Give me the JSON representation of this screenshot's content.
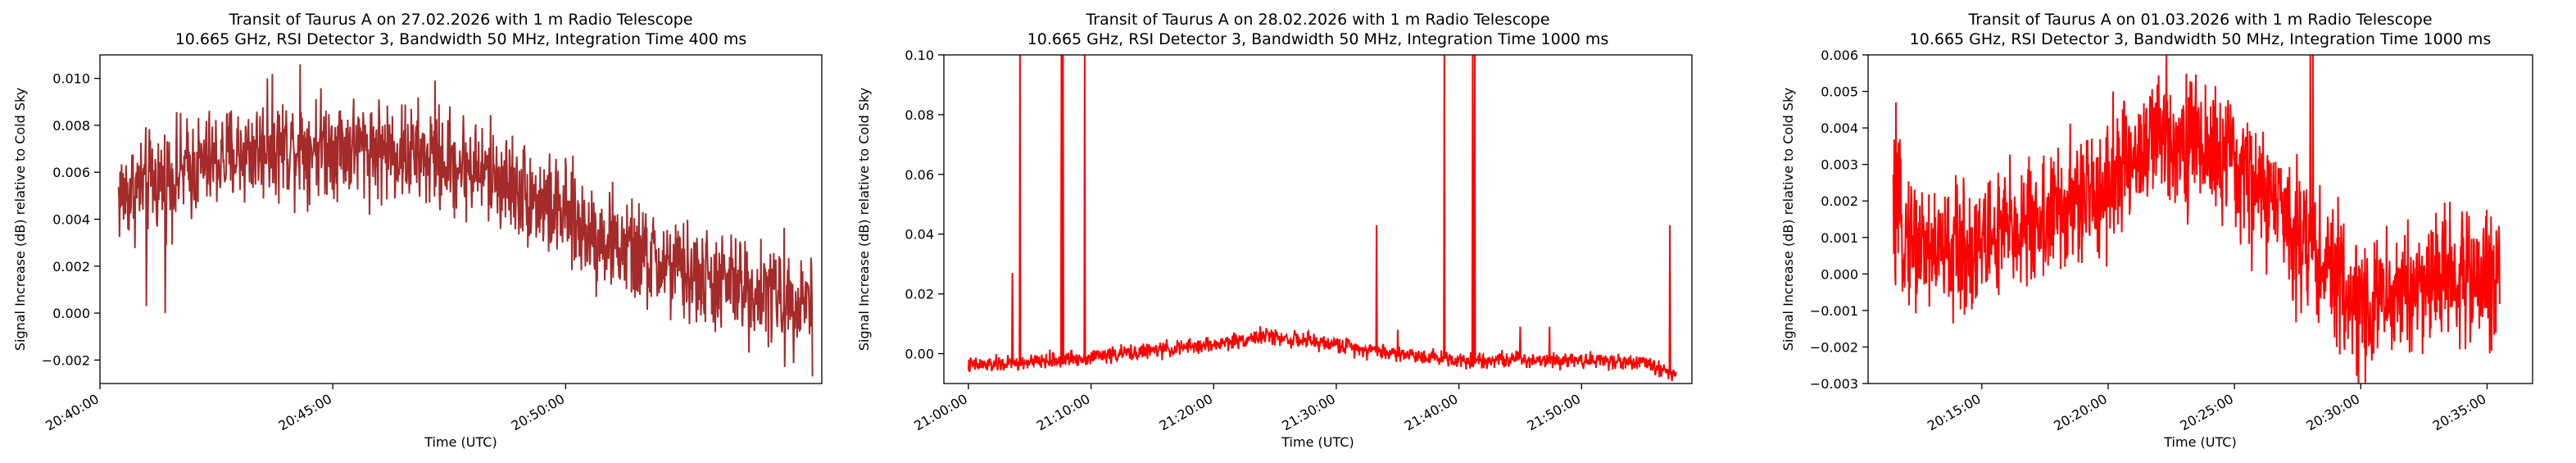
{
  "chart_data": [
    {
      "type": "line",
      "title": [
        "Transit of Taurus A on 27.02.2026 with 1 m Radio Telescope",
        "10.665 GHz, RSI Detector 3, Bandwidth 50 MHz, Integration Time 400 ms"
      ],
      "xlabel": "Time (UTC)",
      "ylabel": "Signal Increase (dB) relative to Cold Sky",
      "color": "#a52a2a",
      "grid": false,
      "x_range_min": [
        40.0,
        55.5
      ],
      "x_ticks_min": [
        40,
        45,
        50
      ],
      "x_tick_labels": [
        "20:40:00",
        "20:45:00",
        "20:50:00"
      ],
      "ylim": [
        -0.003,
        0.011
      ],
      "y_ticks": [
        -0.002,
        0.0,
        0.002,
        0.004,
        0.006,
        0.008,
        0.01
      ],
      "y_tick_labels": [
        "−0.002",
        "0.000",
        "0.002",
        "0.004",
        "0.006",
        "0.008",
        "0.010"
      ],
      "series": [
        {
          "x_min": [
            40.4,
            41.0,
            41.5,
            42.0,
            42.5,
            43.0,
            43.5,
            44.0,
            44.5,
            45.0,
            45.5,
            46.0,
            46.5,
            47.0,
            47.5,
            48.0,
            48.5,
            49.0,
            49.5,
            50.0,
            50.5,
            51.0,
            51.5,
            52.0,
            52.5,
            53.0,
            53.5,
            54.0,
            54.5,
            55.0,
            55.3
          ],
          "y": [
            0.005,
            0.0055,
            0.0058,
            0.0062,
            0.0065,
            0.0068,
            0.007,
            0.0071,
            0.0072,
            0.0072,
            0.0071,
            0.007,
            0.0068,
            0.0066,
            0.0064,
            0.0062,
            0.0058,
            0.0053,
            0.0047,
            0.0041,
            0.0035,
            0.003,
            0.0025,
            0.0021,
            0.0017,
            0.0014,
            0.0012,
            0.001,
            0.0008,
            0.0007,
            0.0006
          ],
          "noise": 0.0012,
          "spikes": [
            [
              44.3,
              0.0106
            ],
            [
              43.6,
              0.01
            ],
            [
              41.0,
              0.0003
            ],
            [
              41.4,
              0.0
            ],
            [
              55.4,
              -0.0027
            ],
            [
              54.7,
              -0.0023
            ],
            [
              47.2,
              0.0099
            ]
          ]
        }
      ]
    },
    {
      "type": "line",
      "title": [
        "Transit of Taurus A on 28.02.2026 with 1 m Radio Telescope",
        "10.665 GHz, RSI Detector 3, Bandwidth 50 MHz, Integration Time 1000 ms"
      ],
      "xlabel": "Time (UTC)",
      "ylabel": "Signal Increase (dB) relative to Cold Sky",
      "color": "#ff0000",
      "grid": false,
      "x_range_min": [
        58.0,
        119.0
      ],
      "x_ticks_min": [
        60,
        70,
        80,
        90,
        100,
        110
      ],
      "x_tick_labels": [
        "21:00:00",
        "21:10:00",
        "21:20:00",
        "21:30:00",
        "21:40:00",
        "21:50:00"
      ],
      "ylim": [
        -0.01,
        0.1
      ],
      "y_ticks": [
        0.0,
        0.02,
        0.04,
        0.06,
        0.08,
        0.1
      ],
      "y_tick_labels": [
        "0.00",
        "0.02",
        "0.04",
        "0.06",
        "0.08",
        "0.10"
      ],
      "series": [
        {
          "x_min": [
            60,
            65,
            70,
            75,
            80,
            84,
            86,
            90,
            95,
            100,
            105,
            110,
            115,
            117.7
          ],
          "y": [
            -0.004,
            -0.003,
            -0.001,
            0.001,
            0.003,
            0.006,
            0.005,
            0.003,
            0.0,
            -0.002,
            -0.002,
            -0.002,
            -0.003,
            -0.007
          ],
          "noise": 0.0015,
          "spikes": [
            [
              63.6,
              0.027
            ],
            [
              64.2,
              0.1
            ],
            [
              67.6,
              0.1
            ],
            [
              67.7,
              0.1
            ],
            [
              69.5,
              0.1
            ],
            [
              93.3,
              0.043
            ],
            [
              95.0,
              0.008
            ],
            [
              98.8,
              0.1
            ],
            [
              101.1,
              0.1
            ],
            [
              101.3,
              0.1
            ],
            [
              105.0,
              0.009
            ],
            [
              107.4,
              0.009
            ],
            [
              117.2,
              0.043
            ]
          ]
        }
      ]
    },
    {
      "type": "line",
      "title": [
        "Transit of Taurus A on 01.03.2026 with 1 m Radio Telescope",
        "10.665 GHz, RSI Detector 3, Bandwidth 50 MHz, Integration Time 1000 ms"
      ],
      "xlabel": "Time (UTC)",
      "ylabel": "Signal Increase (dB) relative to Cold Sky",
      "color": "#ff0000",
      "grid": false,
      "x_range_min": [
        10.5,
        36.8
      ],
      "x_ticks_min": [
        15,
        20,
        25,
        30,
        35
      ],
      "x_tick_labels": [
        "20:15:00",
        "20:20:00",
        "20:25:00",
        "20:30:00",
        "20:35:00"
      ],
      "ylim": [
        -0.003,
        0.006
      ],
      "y_ticks": [
        -0.003,
        -0.002,
        -0.001,
        0.0,
        0.001,
        0.002,
        0.003,
        0.004,
        0.005,
        0.006
      ],
      "y_tick_labels": [
        "−0.003",
        "−0.002",
        "−0.001",
        "0.000",
        "0.001",
        "0.002",
        "0.003",
        "0.004",
        "0.005",
        "0.006"
      ],
      "series": [
        {
          "x_min": [
            11.5,
            12.5,
            13.5,
            14.5,
            15.5,
            16.5,
            17.5,
            18.5,
            19.5,
            20.5,
            21.5,
            22.5,
            23.5,
            24.5,
            25.5,
            26.5,
            27.5,
            28.5,
            29.5,
            30.5,
            31.5,
            32.5,
            33.5,
            34.5,
            35.5
          ],
          "y": [
            0.0015,
            0.0008,
            0.0006,
            0.0007,
            0.001,
            0.0013,
            0.0015,
            0.0018,
            0.0022,
            0.0028,
            0.0035,
            0.0038,
            0.0036,
            0.0032,
            0.0026,
            0.002,
            0.0012,
            0.0003,
            -0.0006,
            -0.0008,
            -0.0005,
            -0.0002,
            0.0,
            -0.0001,
            -0.0002
          ],
          "noise": 0.001,
          "spikes": [
            [
              11.6,
              0.0047
            ],
            [
              22.3,
              0.006
            ],
            [
              28.0,
              0.006
            ],
            [
              28.1,
              0.006
            ],
            [
              29.9,
              -0.003
            ],
            [
              20.2,
              0.005
            ]
          ]
        }
      ]
    }
  ]
}
